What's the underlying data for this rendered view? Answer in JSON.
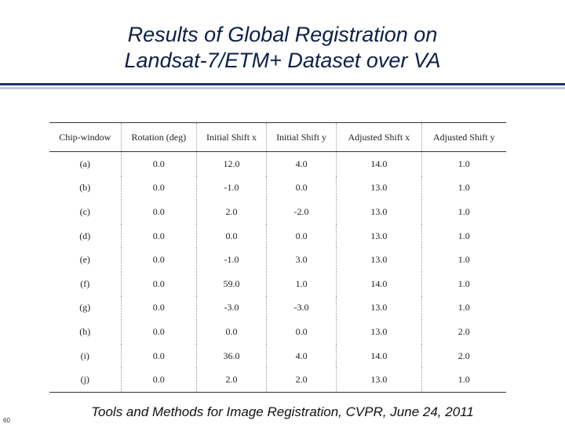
{
  "slide": {
    "title_line1": "Results of Global Registration on",
    "title_line2": "Landsat-7/ETM+ Dataset over VA",
    "number": "60",
    "footer": "Tools and Methods for Image Registration, CVPR, June 24, 2011"
  },
  "table": {
    "headers": [
      "Chip-window",
      "Rotation (deg)",
      "Initial Shift  x",
      "Initial Shift  y",
      "Adjusted Shift  x",
      "Adjusted Shift  y"
    ],
    "rows": [
      [
        "(a)",
        "0.0",
        "12.0",
        "4.0",
        "14.0",
        "1.0"
      ],
      [
        "(b)",
        "0.0",
        "-1.0",
        "0.0",
        "13.0",
        "1.0"
      ],
      [
        "(c)",
        "0.0",
        "2.0",
        "-2.0",
        "13.0",
        "1.0"
      ],
      [
        "(d)",
        "0.0",
        "0.0",
        "0.0",
        "13.0",
        "1.0"
      ],
      [
        "(e)",
        "0.0",
        "-1.0",
        "3.0",
        "13.0",
        "1.0"
      ],
      [
        "(f)",
        "0.0",
        "59.0",
        "1.0",
        "14.0",
        "1.0"
      ],
      [
        "(g)",
        "0.0",
        "-3.0",
        "-3.0",
        "13.0",
        "1.0"
      ],
      [
        "(h)",
        "0.0",
        "0.0",
        "0.0",
        "13.0",
        "2.0"
      ],
      [
        "(i)",
        "0.0",
        "36.0",
        "4.0",
        "14.0",
        "2.0"
      ],
      [
        "(j)",
        "0.0",
        "2.0",
        "2.0",
        "13.0",
        "1.0"
      ]
    ]
  }
}
